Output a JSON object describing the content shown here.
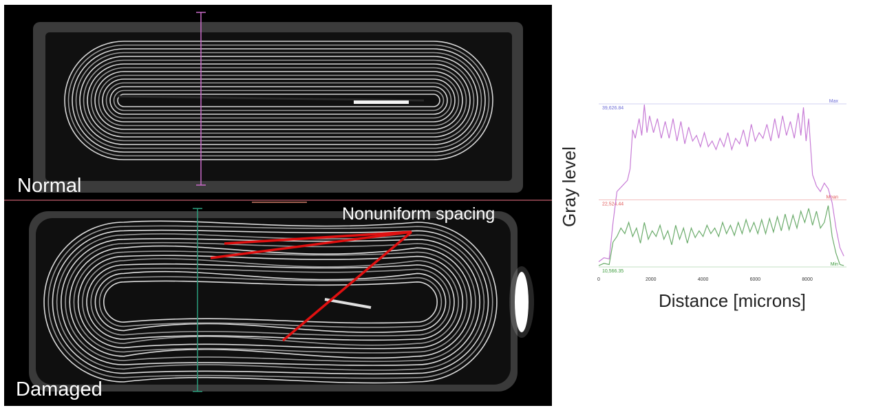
{
  "labels": {
    "normal": "Normal",
    "damaged": "Damaged",
    "annotation": "Nonuniform spacing"
  },
  "chart_data": {
    "type": "line",
    "xlabel": "Distance [microns]",
    "ylabel": "Gray level",
    "xlim": [
      0,
      9500
    ],
    "ylim": [
      10566.35,
      39626.84
    ],
    "x_ticks": [
      0,
      2000,
      4000,
      6000,
      8000
    ],
    "reference_lines": [
      {
        "name": "Max",
        "value": 39626.84,
        "value_label": "39,626.84",
        "color": "#6b6bd6"
      },
      {
        "name": "Mean",
        "value": 22524.44,
        "value_label": "22,524.44",
        "color": "#e05555"
      },
      {
        "name": "Min",
        "value": 10566.35,
        "value_label": "10,566.35",
        "color": "#3a9a3a"
      }
    ],
    "series": [
      {
        "color": "#c77bd6",
        "x": [
          0,
          200,
          400,
          550,
          700,
          900,
          1100,
          1200,
          1300,
          1400,
          1550,
          1650,
          1750,
          1850,
          1950,
          2100,
          2250,
          2400,
          2550,
          2700,
          2850,
          3000,
          3150,
          3300,
          3450,
          3600,
          3750,
          3900,
          4050,
          4200,
          4350,
          4500,
          4650,
          4800,
          4950,
          5100,
          5250,
          5400,
          5550,
          5700,
          5850,
          6000,
          6150,
          6300,
          6450,
          6600,
          6750,
          6900,
          7050,
          7200,
          7350,
          7500,
          7650,
          7750,
          7850,
          7950,
          8050,
          8200,
          8350,
          8500,
          8650,
          8800,
          8950,
          9100,
          9250,
          9400
        ],
        "values": [
          11500,
          12200,
          12000,
          18500,
          24000,
          25000,
          26000,
          28000,
          35000,
          33500,
          37000,
          34000,
          39500,
          34500,
          37500,
          34500,
          37000,
          33500,
          36500,
          33500,
          37000,
          33000,
          36500,
          32500,
          35500,
          33000,
          34000,
          32000,
          34500,
          32000,
          33000,
          31500,
          33500,
          32000,
          34500,
          31500,
          33500,
          32500,
          35000,
          32000,
          36000,
          33000,
          34500,
          33500,
          36000,
          33000,
          37000,
          33500,
          37500,
          34000,
          36500,
          33500,
          38000,
          34000,
          39000,
          33000,
          37000,
          27000,
          25000,
          24000,
          25500,
          24500,
          22000,
          17500,
          14000,
          12500
        ]
      },
      {
        "color": "#6aab6a",
        "x": [
          0,
          200,
          400,
          550,
          700,
          850,
          1000,
          1150,
          1300,
          1450,
          1600,
          1750,
          1900,
          2050,
          2200,
          2350,
          2500,
          2650,
          2800,
          2950,
          3100,
          3250,
          3400,
          3550,
          3700,
          3850,
          4000,
          4150,
          4300,
          4450,
          4600,
          4750,
          4900,
          5050,
          5200,
          5350,
          5500,
          5650,
          5800,
          5950,
          6100,
          6250,
          6400,
          6550,
          6700,
          6850,
          7000,
          7150,
          7300,
          7450,
          7600,
          7750,
          7900,
          8050,
          8200,
          8350,
          8500,
          8650,
          8800,
          8950,
          9100,
          9250,
          9400
        ],
        "values": [
          10800,
          11200,
          11000,
          15000,
          16000,
          17500,
          16500,
          18500,
          16000,
          17500,
          14800,
          18500,
          15500,
          17000,
          16000,
          18000,
          15500,
          17000,
          14500,
          18000,
          15500,
          17500,
          14800,
          17500,
          15800,
          17000,
          16000,
          18000,
          16500,
          17500,
          16000,
          18500,
          16500,
          18000,
          16200,
          18500,
          16500,
          19000,
          16800,
          18500,
          16500,
          19000,
          16500,
          19200,
          16800,
          19500,
          17000,
          20000,
          17200,
          19800,
          17500,
          20500,
          18500,
          21000,
          18000,
          20500,
          17500,
          18500,
          21500,
          16000,
          13000,
          11000,
          10800
        ]
      }
    ]
  }
}
